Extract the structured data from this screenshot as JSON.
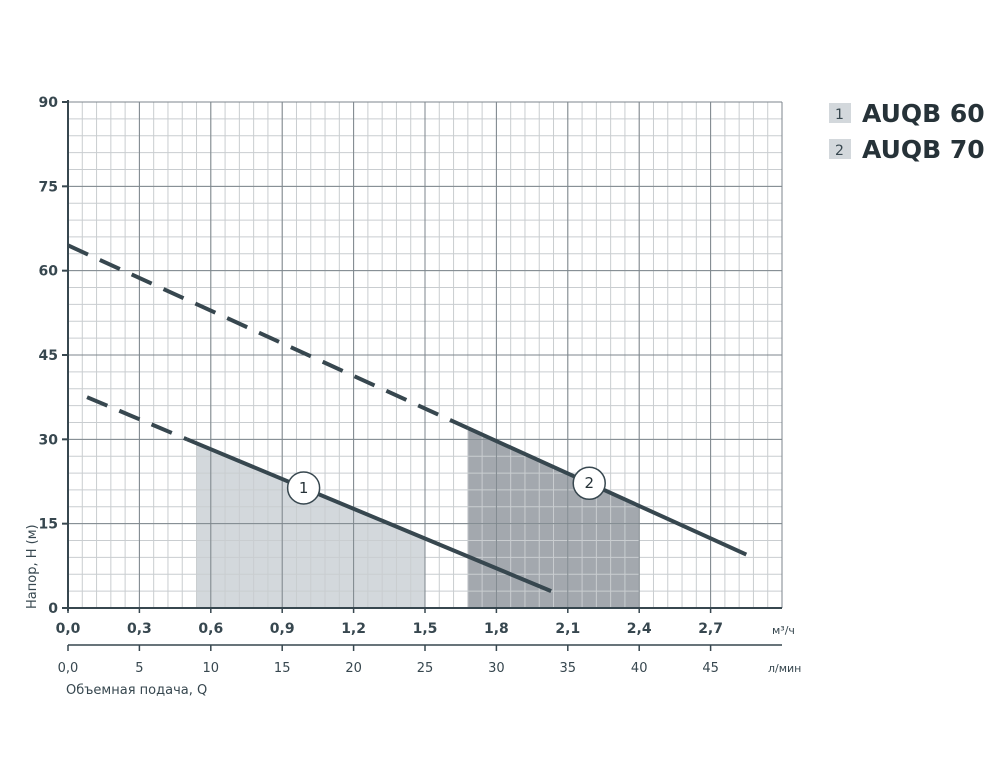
{
  "chart_data": {
    "type": "line",
    "ylabel": "Напор, H (м)",
    "xlabel": "Объемная подача, Q",
    "y_ticks": [
      "0",
      "15",
      "30",
      "45",
      "60",
      "75",
      "90"
    ],
    "x_ticks_m3h": [
      "0,0",
      "0,3",
      "0,6",
      "0,9",
      "1,2",
      "1,5",
      "1,8",
      "2,1",
      "2,4",
      "2,7"
    ],
    "x_unit_m3h": "м³/ч",
    "x_ticks_lmin": [
      "0,0",
      "5",
      "10",
      "15",
      "20",
      "25",
      "30",
      "35",
      "40",
      "45"
    ],
    "x_unit_lmin": "л/мин",
    "xlim_m3h": [
      0,
      3.0
    ],
    "ylim": [
      0,
      90
    ],
    "grid": true,
    "legend_position": "top-right",
    "series": [
      {
        "name": "AUQB 60",
        "number": "1",
        "x_start": 0.08,
        "y_start": 37.5,
        "x_solid_start": 0.5,
        "y_solid_start": 30,
        "x_end": 2.03,
        "y_end": 3,
        "working_range_x": [
          0.54,
          1.5
        ],
        "marker_x": 0.99,
        "fill_color": "#d3d8dc"
      },
      {
        "name": "AUQB 70",
        "number": "2",
        "x_start": 0.0,
        "y_start": 64.5,
        "x_solid_start": 1.68,
        "y_solid_start": 32,
        "x_end": 2.85,
        "y_end": 9.5,
        "working_range_x": [
          1.68,
          2.4
        ],
        "marker_x": 2.19,
        "fill_color": "#a3a8ae"
      }
    ]
  }
}
